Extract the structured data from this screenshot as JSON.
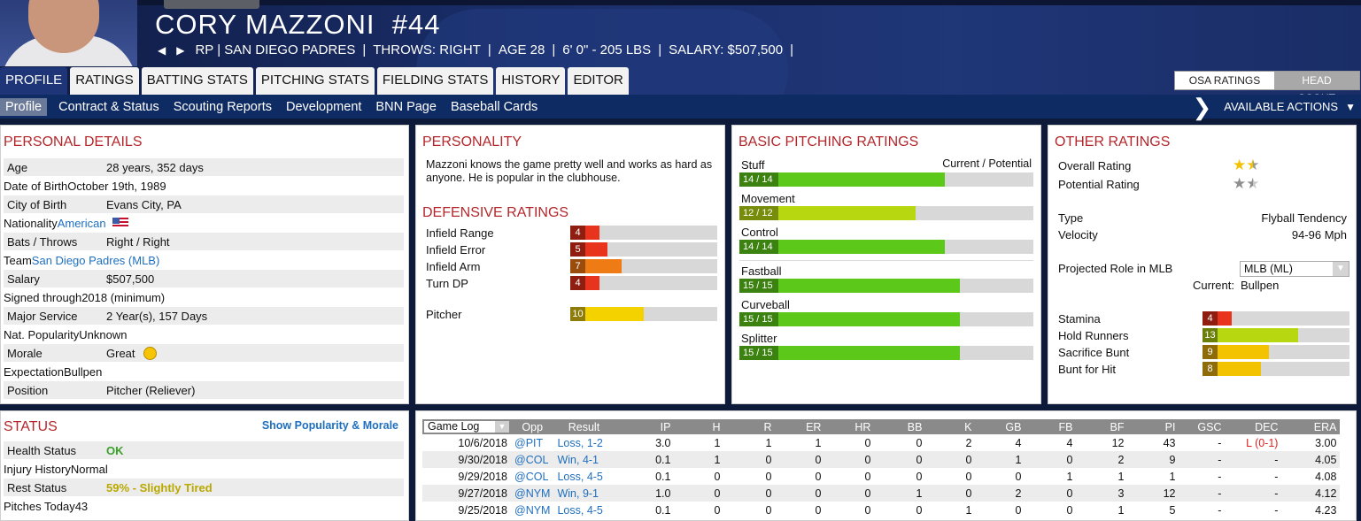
{
  "player": {
    "name": "CORY MAZZONI",
    "number": "#44",
    "position_team": "RP | SAN DIEGO PADRES",
    "throws": "THROWS: RIGHT",
    "age": "AGE 28",
    "size": "6' 0\" - 205 LBS",
    "salary": "SALARY: $507,500"
  },
  "tabs": [
    "PROFILE",
    "RATINGS",
    "BATTING STATS",
    "PITCHING STATS",
    "FIELDING STATS",
    "HISTORY",
    "EDITOR"
  ],
  "rating_source": {
    "osa": "OSA RATINGS",
    "scout": "HEAD SCOUT"
  },
  "subnav": [
    "Profile",
    "Contract & Status",
    "Scouting Reports",
    "Development",
    "BNN Page",
    "Baseball Cards"
  ],
  "actions_label": "AVAILABLE ACTIONS",
  "personal": {
    "title": "PERSONAL DETAILS",
    "rows": [
      {
        "k": "Age",
        "v": "28 years, 352 days"
      },
      {
        "k": "Date of Birth",
        "v": "October 19th, 1989"
      },
      {
        "k": "City of Birth",
        "v": "Evans City, PA"
      },
      {
        "k": "Nationality",
        "v": "American"
      },
      {
        "k": "Bats / Throws",
        "v": "Right / Right"
      },
      {
        "k": "Team",
        "v": "San Diego Padres (MLB)"
      },
      {
        "k": "Salary",
        "v": "$507,500"
      },
      {
        "k": "Signed through",
        "v": "2018 (minimum)"
      },
      {
        "k": "Major Service",
        "v": "2 Year(s), 157 Days"
      },
      {
        "k": "Nat. Popularity",
        "v": "Unknown"
      },
      {
        "k": "Morale",
        "v": "Great"
      },
      {
        "k": "Expectation",
        "v": "Bullpen"
      },
      {
        "k": "Position",
        "v": "Pitcher (Reliever)"
      }
    ]
  },
  "status": {
    "title": "STATUS",
    "link": "Show Popularity & Morale",
    "rows": [
      {
        "k": "Health Status",
        "v": "OK"
      },
      {
        "k": "Injury History",
        "v": "Normal"
      },
      {
        "k": "Rest Status",
        "v": "59% - Slightly Tired"
      },
      {
        "k": "Pitches Today",
        "v": "43"
      }
    ]
  },
  "personality": {
    "title": "PERSONALITY",
    "text": "Mazzoni knows the game pretty well and works as hard as anyone. He is popular in the clubhouse."
  },
  "defensive": {
    "title": "DEFENSIVE RATINGS",
    "rows": [
      {
        "label": "Infield Range",
        "value": 4,
        "color": "#e8341c",
        "tag": "#8f1e10"
      },
      {
        "label": "Infield Error",
        "value": 5,
        "color": "#e8341c",
        "tag": "#8f1e10"
      },
      {
        "label": "Infield Arm",
        "value": 7,
        "color": "#ef7b14",
        "tag": "#9a4c0c"
      },
      {
        "label": "Turn DP",
        "value": 4,
        "color": "#e8341c",
        "tag": "#8f1e10"
      },
      {
        "label": "Pitcher",
        "value": 10,
        "color": "#f3d200",
        "tag": "#8e7c0a"
      }
    ]
  },
  "pitching": {
    "title": "BASIC PITCHING RATINGS",
    "cp_label": "Current / Potential",
    "rows": [
      {
        "label": "Stuff",
        "text": "14 / 14",
        "value": 14,
        "color": "#5cc81a"
      },
      {
        "label": "Movement",
        "text": "12 / 12",
        "value": 12,
        "color": "#b7d811"
      },
      {
        "label": "Control",
        "text": "14 / 14",
        "value": 14,
        "color": "#5cc81a"
      },
      {
        "label": "Fastball",
        "text": "15 / 15",
        "value": 15,
        "color": "#5cc81a"
      },
      {
        "label": "Curveball",
        "text": "15 / 15",
        "value": 15,
        "color": "#5cc81a"
      },
      {
        "label": "Splitter",
        "text": "15 / 15",
        "value": 15,
        "color": "#5cc81a"
      }
    ]
  },
  "other": {
    "title": "OTHER RATINGS",
    "overall_label": "Overall Rating",
    "overall_stars": 1.5,
    "potential_label": "Potential Rating",
    "potential_stars": 1.5,
    "type_label": "Type",
    "type_value": "Flyball Tendency",
    "velocity_label": "Velocity",
    "velocity_value": "94-96 Mph",
    "role_label": "Projected Role in MLB",
    "role_select": "MLB (ML)",
    "current_label": "Current:",
    "current_value": "Bullpen",
    "bars": [
      {
        "label": "Stamina",
        "value": 4,
        "color": "#e8341c",
        "tag": "#8f1e10"
      },
      {
        "label": "Hold Runners",
        "value": 13,
        "color": "#b7d811",
        "tag": "#6a7e0a"
      },
      {
        "label": "Sacrifice Bunt",
        "value": 9,
        "color": "#f3c200",
        "tag": "#8e6c0a"
      },
      {
        "label": "Bunt for Hit",
        "value": 8,
        "color": "#f3c200",
        "tag": "#8e6c0a"
      }
    ]
  },
  "gamelog": {
    "select": "Game Log",
    "headers": [
      "Opp",
      "Result",
      "IP",
      "H",
      "R",
      "ER",
      "HR",
      "BB",
      "K",
      "GB",
      "FB",
      "BF",
      "PI",
      "GSC",
      "DEC",
      "ERA"
    ],
    "rows": [
      [
        "10/6/2018",
        "@PIT",
        "Loss, 1-2",
        "3.0",
        "1",
        "1",
        "1",
        "0",
        "0",
        "2",
        "4",
        "4",
        "12",
        "43",
        "-",
        "L (0-1)",
        "3.00"
      ],
      [
        "9/30/2018",
        "@COL",
        "Win, 4-1",
        "0.1",
        "1",
        "0",
        "0",
        "0",
        "0",
        "0",
        "1",
        "0",
        "2",
        "9",
        "-",
        "-",
        "4.05"
      ],
      [
        "9/29/2018",
        "@COL",
        "Loss, 4-5",
        "0.1",
        "0",
        "0",
        "0",
        "0",
        "0",
        "0",
        "0",
        "1",
        "1",
        "1",
        "-",
        "-",
        "4.08"
      ],
      [
        "9/27/2018",
        "@NYM",
        "Win, 9-1",
        "1.0",
        "0",
        "0",
        "0",
        "0",
        "1",
        "0",
        "2",
        "0",
        "3",
        "12",
        "-",
        "-",
        "4.12"
      ],
      [
        "9/25/2018",
        "@NYM",
        "Loss, 4-5",
        "0.1",
        "0",
        "0",
        "0",
        "0",
        "0",
        "1",
        "0",
        "0",
        "1",
        "5",
        "-",
        "-",
        "4.23"
      ]
    ]
  }
}
